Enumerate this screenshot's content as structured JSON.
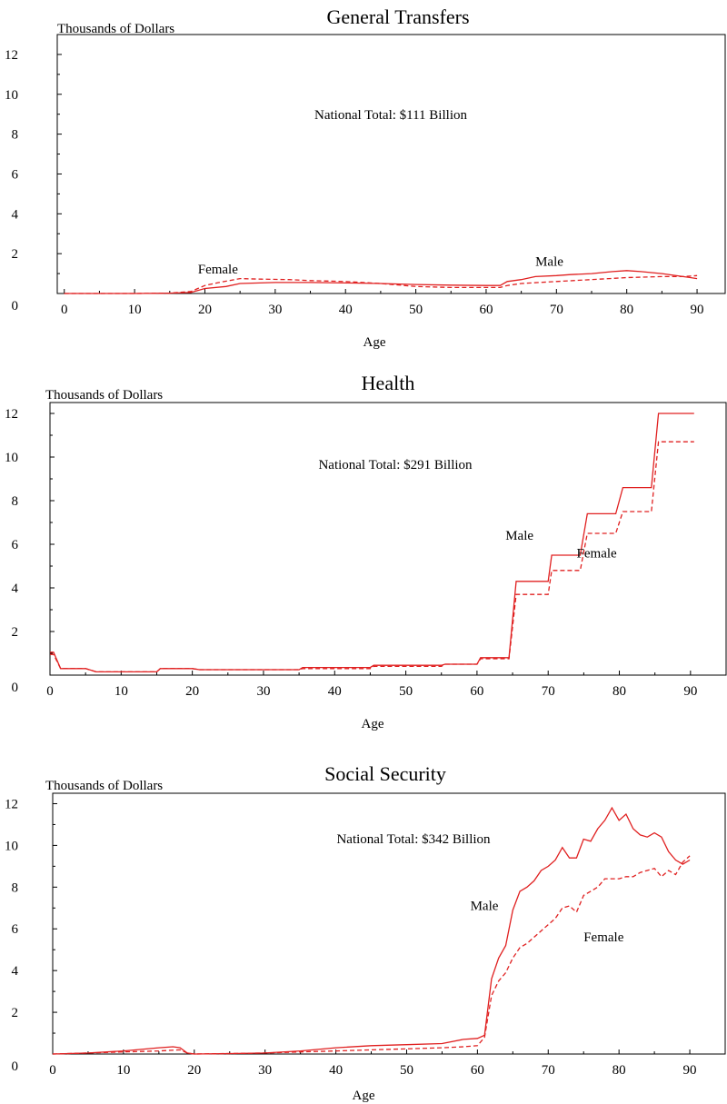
{
  "chart_data": [
    {
      "type": "line",
      "title": "General Transfers",
      "ylabel": "Thousands of Dollars",
      "xlabel": "Age",
      "annotation": "National Total: $111 Billion",
      "ylim": [
        0,
        13
      ],
      "xlim": [
        -1,
        94
      ],
      "x_ticks": [
        0,
        10,
        20,
        30,
        40,
        50,
        60,
        70,
        80,
        90
      ],
      "y_ticks": [
        0,
        2,
        4,
        6,
        8,
        10,
        12
      ],
      "series": [
        {
          "name": "Male",
          "style": "solid",
          "color": "#e02020",
          "label_at": [
            67,
            1.4
          ],
          "points": [
            [
              0,
              0
            ],
            [
              10,
              0
            ],
            [
              15,
              0.02
            ],
            [
              18,
              0.05
            ],
            [
              20,
              0.25
            ],
            [
              23,
              0.35
            ],
            [
              25,
              0.5
            ],
            [
              30,
              0.55
            ],
            [
              35,
              0.55
            ],
            [
              40,
              0.53
            ],
            [
              45,
              0.5
            ],
            [
              50,
              0.45
            ],
            [
              55,
              0.42
            ],
            [
              60,
              0.4
            ],
            [
              62,
              0.4
            ],
            [
              63,
              0.6
            ],
            [
              65,
              0.7
            ],
            [
              67,
              0.85
            ],
            [
              70,
              0.9
            ],
            [
              72,
              0.95
            ],
            [
              75,
              1.0
            ],
            [
              78,
              1.1
            ],
            [
              80,
              1.15
            ],
            [
              82,
              1.1
            ],
            [
              85,
              1.0
            ],
            [
              88,
              0.85
            ],
            [
              90,
              0.75
            ]
          ]
        },
        {
          "name": "Female",
          "style": "dashed",
          "color": "#e02020",
          "label_at": [
            19,
            1.0
          ],
          "points": [
            [
              0,
              0
            ],
            [
              10,
              0
            ],
            [
              15,
              0.02
            ],
            [
              18,
              0.1
            ],
            [
              20,
              0.4
            ],
            [
              22,
              0.55
            ],
            [
              25,
              0.75
            ],
            [
              28,
              0.72
            ],
            [
              32,
              0.7
            ],
            [
              35,
              0.65
            ],
            [
              40,
              0.6
            ],
            [
              45,
              0.5
            ],
            [
              50,
              0.35
            ],
            [
              55,
              0.3
            ],
            [
              60,
              0.3
            ],
            [
              62,
              0.3
            ],
            [
              63,
              0.4
            ],
            [
              65,
              0.5
            ],
            [
              70,
              0.6
            ],
            [
              75,
              0.7
            ],
            [
              80,
              0.8
            ],
            [
              85,
              0.85
            ],
            [
              88,
              0.85
            ],
            [
              90,
              0.9
            ]
          ]
        }
      ]
    },
    {
      "type": "line",
      "title": "Health",
      "ylabel": "Thousands of Dollars",
      "xlabel": "Age",
      "annotation": "National Total: $291 Billion",
      "ylim": [
        0,
        12.5
      ],
      "xlim": [
        0,
        95
      ],
      "x_ticks": [
        0,
        10,
        20,
        30,
        40,
        50,
        60,
        70,
        80,
        90
      ],
      "y_ticks": [
        0,
        2,
        4,
        6,
        8,
        10,
        12
      ],
      "series": [
        {
          "name": "Male",
          "style": "solid",
          "color": "#e02020",
          "label_at": [
            64,
            6.2
          ],
          "points": [
            [
              0,
              1.05
            ],
            [
              0.5,
              1.05
            ],
            [
              1.5,
              0.3
            ],
            [
              5,
              0.3
            ],
            [
              6.5,
              0.15
            ],
            [
              15,
              0.15
            ],
            [
              15.5,
              0.3
            ],
            [
              20,
              0.3
            ],
            [
              21,
              0.25
            ],
            [
              35,
              0.25
            ],
            [
              35.5,
              0.35
            ],
            [
              45,
              0.35
            ],
            [
              45.5,
              0.45
            ],
            [
              55,
              0.45
            ],
            [
              55.5,
              0.5
            ],
            [
              60,
              0.5
            ],
            [
              60.5,
              0.8
            ],
            [
              64.5,
              0.8
            ],
            [
              65.5,
              4.3
            ],
            [
              70,
              4.3
            ],
            [
              70.5,
              5.5
            ],
            [
              74.5,
              5.5
            ],
            [
              75.5,
              7.4
            ],
            [
              79.5,
              7.4
            ],
            [
              80.5,
              8.6
            ],
            [
              84.5,
              8.6
            ],
            [
              85.5,
              12.0
            ],
            [
              90.5,
              12.0
            ]
          ]
        },
        {
          "name": "Female",
          "style": "dashed",
          "color": "#e02020",
          "label_at": [
            74,
            5.4
          ],
          "points": [
            [
              0,
              0.95
            ],
            [
              0.5,
              0.95
            ],
            [
              1.5,
              0.3
            ],
            [
              5,
              0.3
            ],
            [
              6.5,
              0.15
            ],
            [
              15,
              0.15
            ],
            [
              15.5,
              0.3
            ],
            [
              20,
              0.3
            ],
            [
              21,
              0.25
            ],
            [
              35,
              0.25
            ],
            [
              35.5,
              0.3
            ],
            [
              45,
              0.3
            ],
            [
              45.5,
              0.4
            ],
            [
              55,
              0.4
            ],
            [
              55.5,
              0.5
            ],
            [
              60,
              0.5
            ],
            [
              60.5,
              0.75
            ],
            [
              64.5,
              0.75
            ],
            [
              65.5,
              3.7
            ],
            [
              70,
              3.7
            ],
            [
              70.5,
              4.8
            ],
            [
              74.5,
              4.8
            ],
            [
              75.5,
              6.5
            ],
            [
              79.5,
              6.5
            ],
            [
              80.5,
              7.5
            ],
            [
              84.5,
              7.5
            ],
            [
              85.5,
              10.7
            ],
            [
              90.5,
              10.7
            ]
          ]
        }
      ]
    },
    {
      "type": "line",
      "title": "Social Security",
      "ylabel": "Thousands of Dollars",
      "xlabel": "Age",
      "annotation": "National Total: $342  Billion",
      "ylim": [
        0,
        12.5
      ],
      "xlim": [
        0,
        95
      ],
      "x_ticks": [
        0,
        10,
        20,
        30,
        40,
        50,
        60,
        70,
        80,
        90
      ],
      "y_ticks": [
        0,
        2,
        4,
        6,
        8,
        10,
        12
      ],
      "series": [
        {
          "name": "Male",
          "style": "solid",
          "color": "#e02020",
          "label_at": [
            59,
            6.9
          ],
          "points": [
            [
              0,
              0
            ],
            [
              5,
              0.05
            ],
            [
              10,
              0.15
            ],
            [
              15,
              0.3
            ],
            [
              17,
              0.35
            ],
            [
              18,
              0.3
            ],
            [
              19,
              0.05
            ],
            [
              20,
              0
            ],
            [
              25,
              0.02
            ],
            [
              30,
              0.05
            ],
            [
              35,
              0.15
            ],
            [
              40,
              0.3
            ],
            [
              45,
              0.4
            ],
            [
              50,
              0.45
            ],
            [
              55,
              0.5
            ],
            [
              58,
              0.7
            ],
            [
              60,
              0.75
            ],
            [
              61,
              0.9
            ],
            [
              62,
              3.6
            ],
            [
              63,
              4.6
            ],
            [
              64,
              5.2
            ],
            [
              65,
              6.9
            ],
            [
              66,
              7.8
            ],
            [
              67,
              8.0
            ],
            [
              68,
              8.3
            ],
            [
              69,
              8.8
            ],
            [
              70,
              9.0
            ],
            [
              71,
              9.3
            ],
            [
              72,
              9.9
            ],
            [
              73,
              9.4
            ],
            [
              74,
              9.4
            ],
            [
              75,
              10.3
            ],
            [
              76,
              10.2
            ],
            [
              77,
              10.8
            ],
            [
              78,
              11.2
            ],
            [
              79,
              11.8
            ],
            [
              80,
              11.2
            ],
            [
              81,
              11.5
            ],
            [
              82,
              10.8
            ],
            [
              83,
              10.5
            ],
            [
              84,
              10.4
            ],
            [
              85,
              10.6
            ],
            [
              86,
              10.4
            ],
            [
              87,
              9.7
            ],
            [
              88,
              9.3
            ],
            [
              89,
              9.1
            ],
            [
              90,
              9.3
            ]
          ]
        },
        {
          "name": "Female",
          "style": "dashed",
          "color": "#e02020",
          "label_at": [
            75,
            5.4
          ],
          "points": [
            [
              0,
              0
            ],
            [
              5,
              0.05
            ],
            [
              10,
              0.1
            ],
            [
              15,
              0.15
            ],
            [
              18,
              0.2
            ],
            [
              19,
              0.05
            ],
            [
              20,
              0
            ],
            [
              25,
              0.02
            ],
            [
              30,
              0.05
            ],
            [
              35,
              0.1
            ],
            [
              40,
              0.15
            ],
            [
              45,
              0.2
            ],
            [
              50,
              0.25
            ],
            [
              55,
              0.3
            ],
            [
              58,
              0.35
            ],
            [
              60,
              0.4
            ],
            [
              61,
              0.8
            ],
            [
              62,
              2.8
            ],
            [
              63,
              3.5
            ],
            [
              64,
              3.9
            ],
            [
              65,
              4.6
            ],
            [
              66,
              5.1
            ],
            [
              67,
              5.3
            ],
            [
              68,
              5.6
            ],
            [
              69,
              5.9
            ],
            [
              70,
              6.2
            ],
            [
              71,
              6.5
            ],
            [
              72,
              7.0
            ],
            [
              73,
              7.1
            ],
            [
              74,
              6.8
            ],
            [
              75,
              7.6
            ],
            [
              76,
              7.8
            ],
            [
              77,
              8.0
            ],
            [
              78,
              8.4
            ],
            [
              79,
              8.4
            ],
            [
              80,
              8.4
            ],
            [
              81,
              8.5
            ],
            [
              82,
              8.5
            ],
            [
              83,
              8.7
            ],
            [
              84,
              8.8
            ],
            [
              85,
              8.9
            ],
            [
              86,
              8.5
            ],
            [
              87,
              8.8
            ],
            [
              88,
              8.6
            ],
            [
              89,
              9.2
            ],
            [
              90,
              9.5
            ]
          ]
        }
      ]
    }
  ]
}
